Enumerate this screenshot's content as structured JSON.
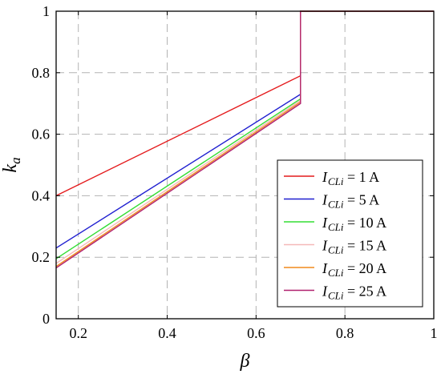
{
  "chart_data": {
    "type": "line",
    "title": "",
    "xlabel": "β",
    "ylabel": "k",
    "ylabel_sub": "a",
    "xlim": [
      0.15,
      1.0
    ],
    "ylim": [
      0,
      1.0
    ],
    "xticks": [
      0.2,
      0.4,
      0.6,
      0.8,
      1.0
    ],
    "xtick_labels": [
      "0.2",
      "0.4",
      "0.6",
      "0.8",
      "1"
    ],
    "yticks": [
      0,
      0.2,
      0.4,
      0.6,
      0.8,
      1.0
    ],
    "ytick_labels": [
      "0",
      "0.2",
      "0.4",
      "0.6",
      "0.8",
      "1"
    ],
    "grid": true,
    "legend_position": "bottom-right",
    "series": [
      {
        "name_main": "I",
        "name_sub": "CLi",
        "name_rest": " = 1 A",
        "color": "#e41a1c",
        "x": [
          0.15,
          0.7,
          0.7,
          1.0
        ],
        "y": [
          0.4,
          0.79,
          1.0,
          1.0
        ]
      },
      {
        "name_main": "I",
        "name_sub": "CLi",
        "name_rest": " = 5 A",
        "color": "#1f1fd0",
        "x": [
          0.15,
          0.7,
          0.7,
          1.0
        ],
        "y": [
          0.23,
          0.73,
          1.0,
          1.0
        ]
      },
      {
        "name_main": "I",
        "name_sub": "CLi",
        "name_rest": " = 10 A",
        "color": "#33dd33",
        "x": [
          0.15,
          0.7,
          0.7,
          1.0
        ],
        "y": [
          0.195,
          0.715,
          1.0,
          1.0
        ]
      },
      {
        "name_main": "I",
        "name_sub": "CLi",
        "name_rest": " = 15 A",
        "color": "#f4b8b8",
        "x": [
          0.15,
          0.7,
          0.7,
          1.0
        ],
        "y": [
          0.18,
          0.71,
          1.0,
          1.0
        ]
      },
      {
        "name_main": "I",
        "name_sub": "CLi",
        "name_rest": " = 20 A",
        "color": "#f08a1c",
        "x": [
          0.15,
          0.7,
          0.7,
          1.0
        ],
        "y": [
          0.17,
          0.705,
          1.0,
          1.0
        ]
      },
      {
        "name_main": "I",
        "name_sub": "CLi",
        "name_rest": " = 25 A",
        "color": "#b0206e",
        "x": [
          0.15,
          0.7,
          0.7,
          1.0
        ],
        "y": [
          0.165,
          0.7,
          1.0,
          1.0
        ]
      }
    ]
  }
}
